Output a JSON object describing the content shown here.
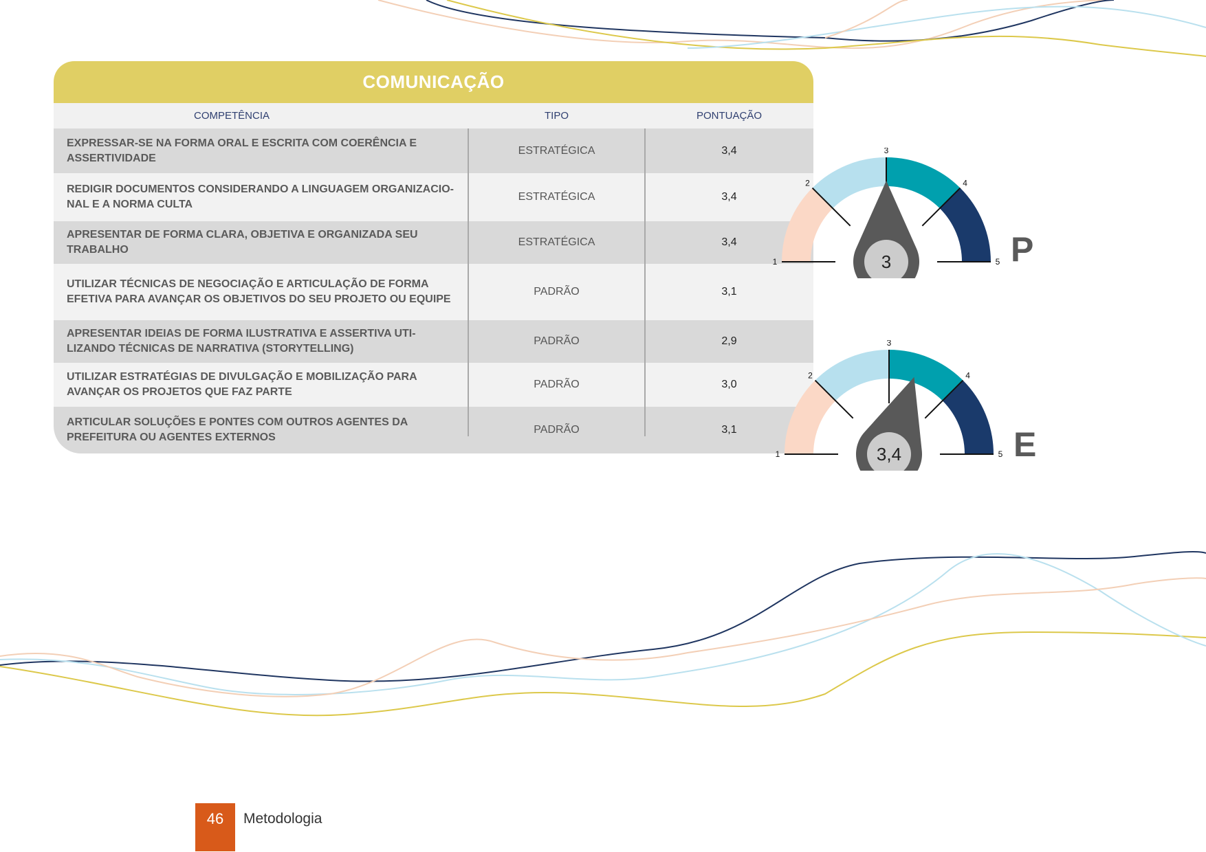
{
  "table": {
    "title": "COMUNICAÇÃO",
    "headers": {
      "competencia": "COMPETÊNCIA",
      "tipo": "TIPO",
      "pontuacao": "PONTUAÇÃO"
    },
    "rows": [
      {
        "competencia": "EXPRESSAR-SE NA FORMA ORAL E ESCRITA COM COERÊNCIA E ASSERTIVIDADE",
        "tipo": "ESTRATÉGICA",
        "pontuacao": "3,4"
      },
      {
        "competencia": "REDIGIR DOCUMENTOS CONSIDERANDO A LINGUAGEM ORGANIZACIO-NAL E A NORMA CULTA",
        "tipo": "ESTRATÉGICA",
        "pontuacao": "3,4"
      },
      {
        "competencia": "APRESENTAR DE FORMA CLARA, OBJETIVA E ORGANIZADA SEU TRABALHO",
        "tipo": "ESTRATÉGICA",
        "pontuacao": "3,4"
      },
      {
        "competencia": "UTILIZAR TÉCNICAS DE NEGOCIAÇÃO E ARTICULAÇÃO DE FORMA EFETIVA PARA AVANÇAR OS OBJETIVOS DO SEU PROJETO OU EQUIPE",
        "tipo": "PADRÃO",
        "pontuacao": "3,1"
      },
      {
        "competencia": "APRESENTAR IDEIAS DE FORMA ILUSTRATIVA E ASSERTIVA UTI-LIZANDO TÉCNICAS DE NARRATIVA (STORYTELLING)",
        "tipo": "PADRÃO",
        "pontuacao": "2,9"
      },
      {
        "competencia": "UTILIZAR ESTRATÉGIAS DE DIVULGAÇÃO E MOBILIZAÇÃO PARA AVANÇAR OS PROJETOS QUE FAZ PARTE",
        "tipo": "PADRÃO",
        "pontuacao": "3,0"
      },
      {
        "competencia": "ARTICULAR SOLUÇÕES E PONTES COM OUTROS AGENTES DA PREFEITURA OU AGENTES EXTERNOS",
        "tipo": "PADRÃO",
        "pontuacao": "3,1"
      }
    ]
  },
  "gauges": [
    {
      "letter": "P",
      "value": 3,
      "value_label": "3"
    },
    {
      "letter": "E",
      "value": 3.4,
      "value_label": "3,4"
    }
  ],
  "gauge_scale": {
    "min": 1,
    "max": 5,
    "tick_labels": [
      "1",
      "2",
      "3",
      "4",
      "5"
    ],
    "band_colors": [
      "#fbd8c6",
      "#b7e0ee",
      "#00a0ae",
      "#1a3a6b"
    ],
    "needle_color": "#595959",
    "hub_color": "#cccccc"
  },
  "footer": {
    "page_number": "46",
    "section": "Metodologia"
  },
  "colors": {
    "title_bar": "#e0cf64",
    "page_number_bg": "#d85a1a",
    "wave_navy": "#1f3560",
    "wave_yellow": "#dcc84a",
    "wave_light_blue": "#b9e0ee",
    "wave_peach": "#f3cfb6"
  }
}
